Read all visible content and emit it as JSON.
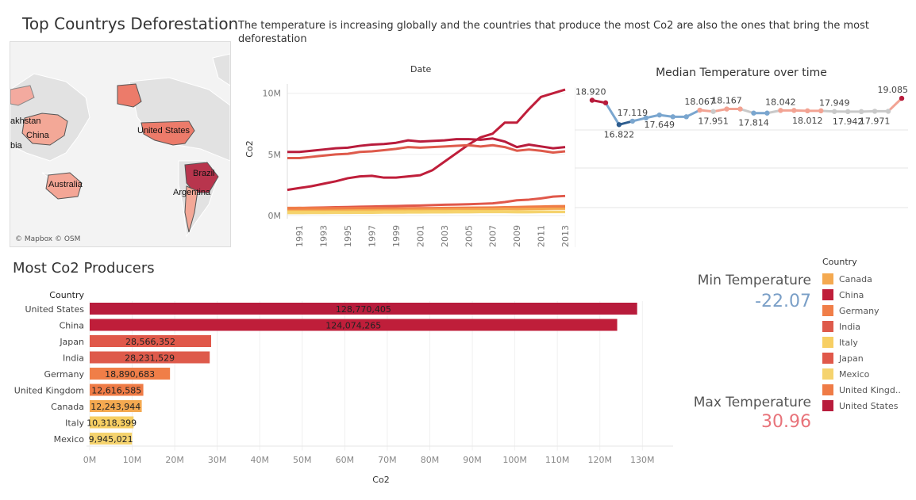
{
  "header": {
    "map_title": "Top Countrys Deforestation",
    "subtitle": "The temperature is increasing globally and the countries that produce the most Co2 are also the ones that bring the most deforestation"
  },
  "map": {
    "credit": "© Mapbox © OSM",
    "labels": [
      "China",
      "akhstan",
      "bia",
      "Australia",
      "United States",
      "Brazil",
      "Argentina"
    ]
  },
  "colors": {
    "Canada": "#f4a950",
    "China": "#bf1e3a",
    "Germany": "#f07e48",
    "India": "#de5a4b",
    "Italy": "#f7cf63",
    "Japan": "#e0584a",
    "Mexico": "#f5d36e",
    "United Kingdom": "#ef7b46",
    "United States": "#b81c3c"
  },
  "chart_data": [
    {
      "type": "line",
      "title": "Date",
      "ylabel": "Co2",
      "x": [
        1990,
        1991,
        1992,
        1993,
        1994,
        1995,
        1996,
        1997,
        1998,
        1999,
        2000,
        2001,
        2002,
        2003,
        2004,
        2005,
        2006,
        2007,
        2008,
        2009,
        2010,
        2011,
        2012,
        2013
      ],
      "x_tick_labels": [
        "1991",
        "1993",
        "1995",
        "1997",
        "1999",
        "2001",
        "2003",
        "2005",
        "2007",
        "2009",
        "2011",
        "2013"
      ],
      "ylim": [
        0,
        10500000
      ],
      "y_ticks": [
        0,
        5000000,
        10000000
      ],
      "y_tick_labels": [
        "0M",
        "5M",
        "10M"
      ],
      "series": [
        {
          "key": "China",
          "values": [
            2100000,
            2250000,
            2400000,
            2600000,
            2800000,
            3050000,
            3200000,
            3250000,
            3100000,
            3100000,
            3200000,
            3300000,
            3700000,
            4400000,
            5100000,
            5800000,
            6400000,
            6700000,
            7600000,
            7600000,
            8700000,
            9700000,
            10000000,
            10300000
          ]
        },
        {
          "key": "United States",
          "values": [
            5200000,
            5200000,
            5300000,
            5400000,
            5500000,
            5550000,
            5700000,
            5800000,
            5850000,
            5950000,
            6150000,
            6050000,
            6100000,
            6150000,
            6250000,
            6250000,
            6200000,
            6300000,
            6050000,
            5600000,
            5800000,
            5650000,
            5500000,
            5600000
          ]
        },
        {
          "key": "India",
          "values": [
            4700000,
            4700000,
            4800000,
            4900000,
            5000000,
            5050000,
            5200000,
            5250000,
            5350000,
            5450000,
            5600000,
            5550000,
            5600000,
            5650000,
            5700000,
            5750000,
            5650000,
            5750000,
            5600000,
            5300000,
            5400000,
            5300000,
            5150000,
            5250000
          ]
        },
        {
          "key": "Japan",
          "values": [
            600000,
            620000,
            640000,
            660000,
            680000,
            700000,
            720000,
            740000,
            760000,
            780000,
            800000,
            820000,
            850000,
            880000,
            900000,
            920000,
            960000,
            1000000,
            1100000,
            1250000,
            1300000,
            1400000,
            1550000,
            1600000
          ]
        },
        {
          "key": "Germany",
          "values": [
            620000,
            620000,
            610000,
            600000,
            600000,
            600000,
            610000,
            600000,
            600000,
            590000,
            600000,
            610000,
            610000,
            620000,
            630000,
            640000,
            650000,
            660000,
            680000,
            700000,
            720000,
            740000,
            760000,
            770000
          ]
        },
        {
          "key": "United Kingdom",
          "values": [
            420000,
            420000,
            430000,
            430000,
            440000,
            450000,
            460000,
            470000,
            480000,
            490000,
            500000,
            510000,
            520000,
            540000,
            560000,
            580000,
            600000,
            630000,
            650000,
            600000,
            620000,
            640000,
            660000,
            680000
          ]
        },
        {
          "key": "Canada",
          "values": [
            380000,
            380000,
            390000,
            390000,
            400000,
            410000,
            420000,
            430000,
            440000,
            450000,
            460000,
            470000,
            480000,
            490000,
            500000,
            510000,
            520000,
            530000,
            540000,
            530000,
            540000,
            550000,
            560000,
            560000
          ]
        },
        {
          "key": "Italy",
          "values": [
            300000,
            300000,
            300000,
            300000,
            310000,
            310000,
            320000,
            320000,
            330000,
            330000,
            340000,
            340000,
            350000,
            350000,
            360000,
            360000,
            360000,
            360000,
            350000,
            330000,
            330000,
            330000,
            320000,
            310000
          ]
        },
        {
          "key": "Mexico",
          "values": [
            200000,
            200000,
            210000,
            210000,
            220000,
            220000,
            230000,
            230000,
            240000,
            240000,
            250000,
            250000,
            260000,
            260000,
            270000,
            270000,
            280000,
            280000,
            280000,
            270000,
            270000,
            280000,
            280000,
            280000
          ]
        }
      ]
    },
    {
      "type": "line",
      "title": "Median Temperature over time",
      "x": [
        1990,
        1991,
        1992,
        1993,
        1994,
        1995,
        1996,
        1997,
        1998,
        1999,
        2000,
        2001,
        2002,
        2003,
        2004,
        2005,
        2006,
        2007,
        2008,
        2009,
        2010,
        2011,
        2012,
        2013
      ],
      "values": [
        18.92,
        18.7,
        16.822,
        17.119,
        17.4,
        17.649,
        17.5,
        17.5,
        18.067,
        17.951,
        18.167,
        18.167,
        17.814,
        17.814,
        18.042,
        18.042,
        18.012,
        18.012,
        17.949,
        17.942,
        17.942,
        17.971,
        17.971,
        19.085
      ],
      "data_labels": [
        {
          "i": 0,
          "text": "18.920",
          "pos": "above"
        },
        {
          "i": 2,
          "text": "16.822",
          "pos": "below"
        },
        {
          "i": 3,
          "text": "17.119",
          "pos": "above"
        },
        {
          "i": 5,
          "text": "17.649",
          "pos": "below"
        },
        {
          "i": 8,
          "text": "18.067",
          "pos": "above"
        },
        {
          "i": 9,
          "text": "17.951",
          "pos": "below"
        },
        {
          "i": 10,
          "text": "18.167",
          "pos": "above"
        },
        {
          "i": 12,
          "text": "17.814",
          "pos": "below"
        },
        {
          "i": 14,
          "text": "18.042",
          "pos": "above"
        },
        {
          "i": 16,
          "text": "18.012",
          "pos": "below"
        },
        {
          "i": 18,
          "text": "17.949",
          "pos": "above"
        },
        {
          "i": 19,
          "text": "17.942",
          "pos": "below"
        },
        {
          "i": 21,
          "text": "17.971",
          "pos": "below"
        },
        {
          "i": 23,
          "text": "19.085",
          "pos": "above"
        }
      ],
      "grid": true
    },
    {
      "type": "bar",
      "orientation": "horizontal",
      "title": "Most Co2 Producers",
      "row_header": "Country",
      "xlabel": "Co2",
      "categories": [
        "United States",
        "China",
        "Japan",
        "India",
        "Germany",
        "United Kingdom",
        "Canada",
        "Italy",
        "Mexico"
      ],
      "values": [
        128770405,
        124074265,
        28566352,
        28231529,
        18890683,
        12616585,
        12243944,
        10318399,
        9945021
      ],
      "data_labels": [
        "128,770,405",
        "124,074,265",
        "28,566,352",
        "28,231,529",
        "18,890,683",
        "12,616,585",
        "12,243,944",
        "10,318,399",
        "9,945,021"
      ],
      "xlim": [
        0,
        132000000
      ],
      "x_ticks": [
        0,
        10000000,
        20000000,
        30000000,
        40000000,
        50000000,
        60000000,
        70000000,
        80000000,
        90000000,
        100000000,
        110000000,
        120000000,
        130000000
      ],
      "x_tick_labels": [
        "0M",
        "10M",
        "20M",
        "30M",
        "40M",
        "50M",
        "60M",
        "70M",
        "80M",
        "90M",
        "100M",
        "110M",
        "120M",
        "130M"
      ]
    }
  ],
  "kpis": {
    "min_label": "Min Temperature",
    "min_value": "-22.07",
    "max_label": "Max Temperature",
    "max_value": "30.96"
  },
  "legend": {
    "title": "Country",
    "items": [
      {
        "key": "Canada",
        "label": "Canada"
      },
      {
        "key": "China",
        "label": "China"
      },
      {
        "key": "Germany",
        "label": "Germany"
      },
      {
        "key": "India",
        "label": "India"
      },
      {
        "key": "Italy",
        "label": "Italy"
      },
      {
        "key": "Japan",
        "label": "Japan"
      },
      {
        "key": "Mexico",
        "label": "Mexico"
      },
      {
        "key": "United Kingdom",
        "label": "United Kingd.."
      },
      {
        "key": "United States",
        "label": "United States"
      }
    ]
  }
}
